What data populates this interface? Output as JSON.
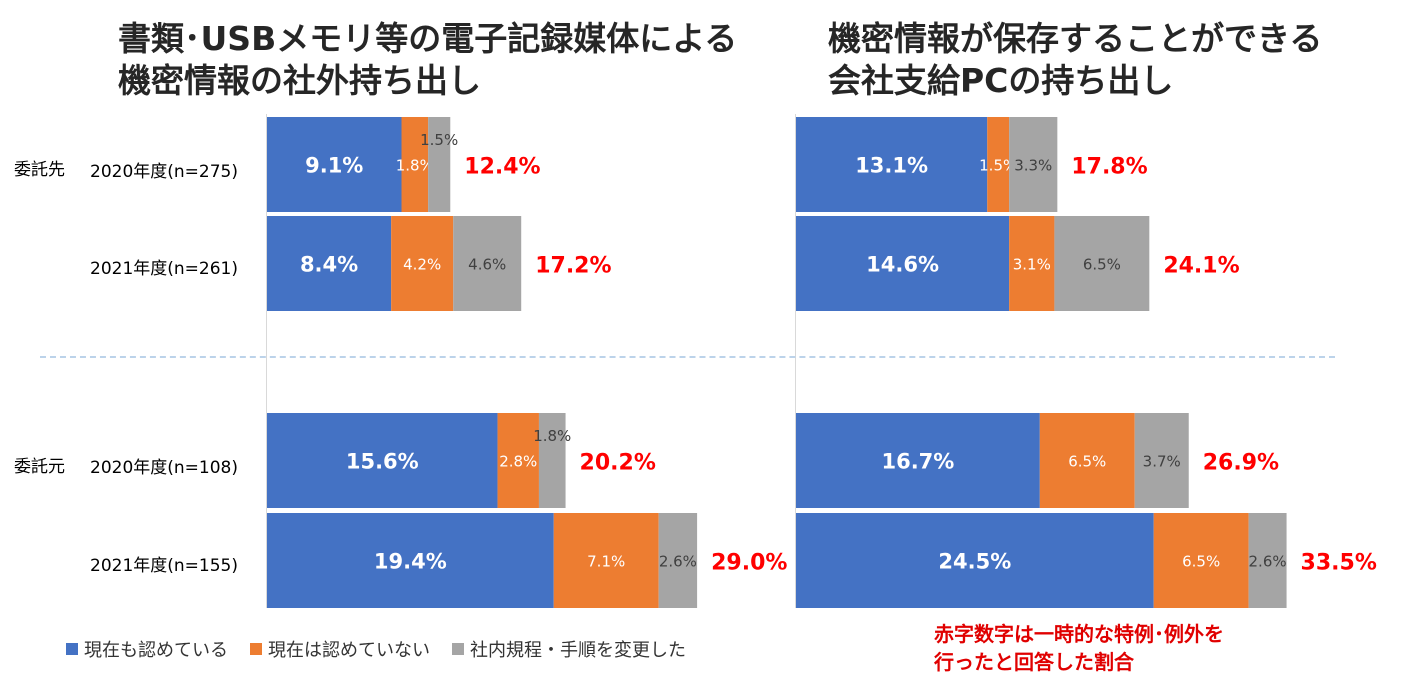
{
  "titles": {
    "left_line1": "書類･USBメモリ等の電子記録媒体による",
    "left_line2": "機密情報の社外持ち出し",
    "right_line1": "機密情報が保存することができる",
    "right_line2": "会社支給PCの持ち出し"
  },
  "row_groups": {
    "itaku_saki": "委託先",
    "itaku_moto": "委託元"
  },
  "row_labels": [
    "2020年度(n=275)",
    "2021年度(n=261)",
    "2020年度(n=108)",
    "2021年度(n=155)"
  ],
  "legend": [
    "現在も認めている",
    "現在は認めていない",
    "社内規程・手順を変更した"
  ],
  "colors": {
    "blue": "#4472c4",
    "orange": "#ed7d31",
    "gray": "#a5a5a5",
    "red": "#ff0000"
  },
  "note": {
    "line1": "赤字数字は一時的な特例･例外を",
    "line2": "行ったと回答した割合"
  },
  "chart_data": [
    {
      "type": "bar",
      "orientation": "horizontal",
      "stacked": true,
      "title": "書類･USBメモリ等の電子記録媒体による機密情報の社外持ち出し",
      "categories": [
        "委託先 2020年度(n=275)",
        "委託先 2021年度(n=261)",
        "委託元 2020年度(n=108)",
        "委託元 2021年度(n=155)"
      ],
      "series": [
        {
          "name": "現在も認めている",
          "values": [
            9.1,
            8.4,
            15.6,
            19.4
          ]
        },
        {
          "name": "現在は認めていない",
          "values": [
            1.8,
            4.2,
            2.8,
            7.1
          ]
        },
        {
          "name": "社内規程・手順を変更した",
          "values": [
            1.5,
            4.6,
            1.8,
            2.6
          ]
        }
      ],
      "totals": [
        "12.4%",
        "17.2%",
        "20.2%",
        "29.0%"
      ],
      "value_unit": "%"
    },
    {
      "type": "bar",
      "orientation": "horizontal",
      "stacked": true,
      "title": "機密情報が保存することができる会社支給PCの持ち出し",
      "categories": [
        "委託先 2020年度(n=275)",
        "委託先 2021年度(n=261)",
        "委託元 2020年度(n=108)",
        "委託元 2021年度(n=155)"
      ],
      "series": [
        {
          "name": "現在も認めている",
          "values": [
            13.1,
            14.6,
            16.7,
            24.5
          ]
        },
        {
          "name": "現在は認めていない",
          "values": [
            1.5,
            3.1,
            6.5,
            6.5
          ]
        },
        {
          "name": "社内規程・手順を変更した",
          "values": [
            3.3,
            6.5,
            3.7,
            2.6
          ]
        }
      ],
      "totals": [
        "17.8%",
        "24.1%",
        "26.9%",
        "33.5%"
      ],
      "value_unit": "%"
    }
  ]
}
